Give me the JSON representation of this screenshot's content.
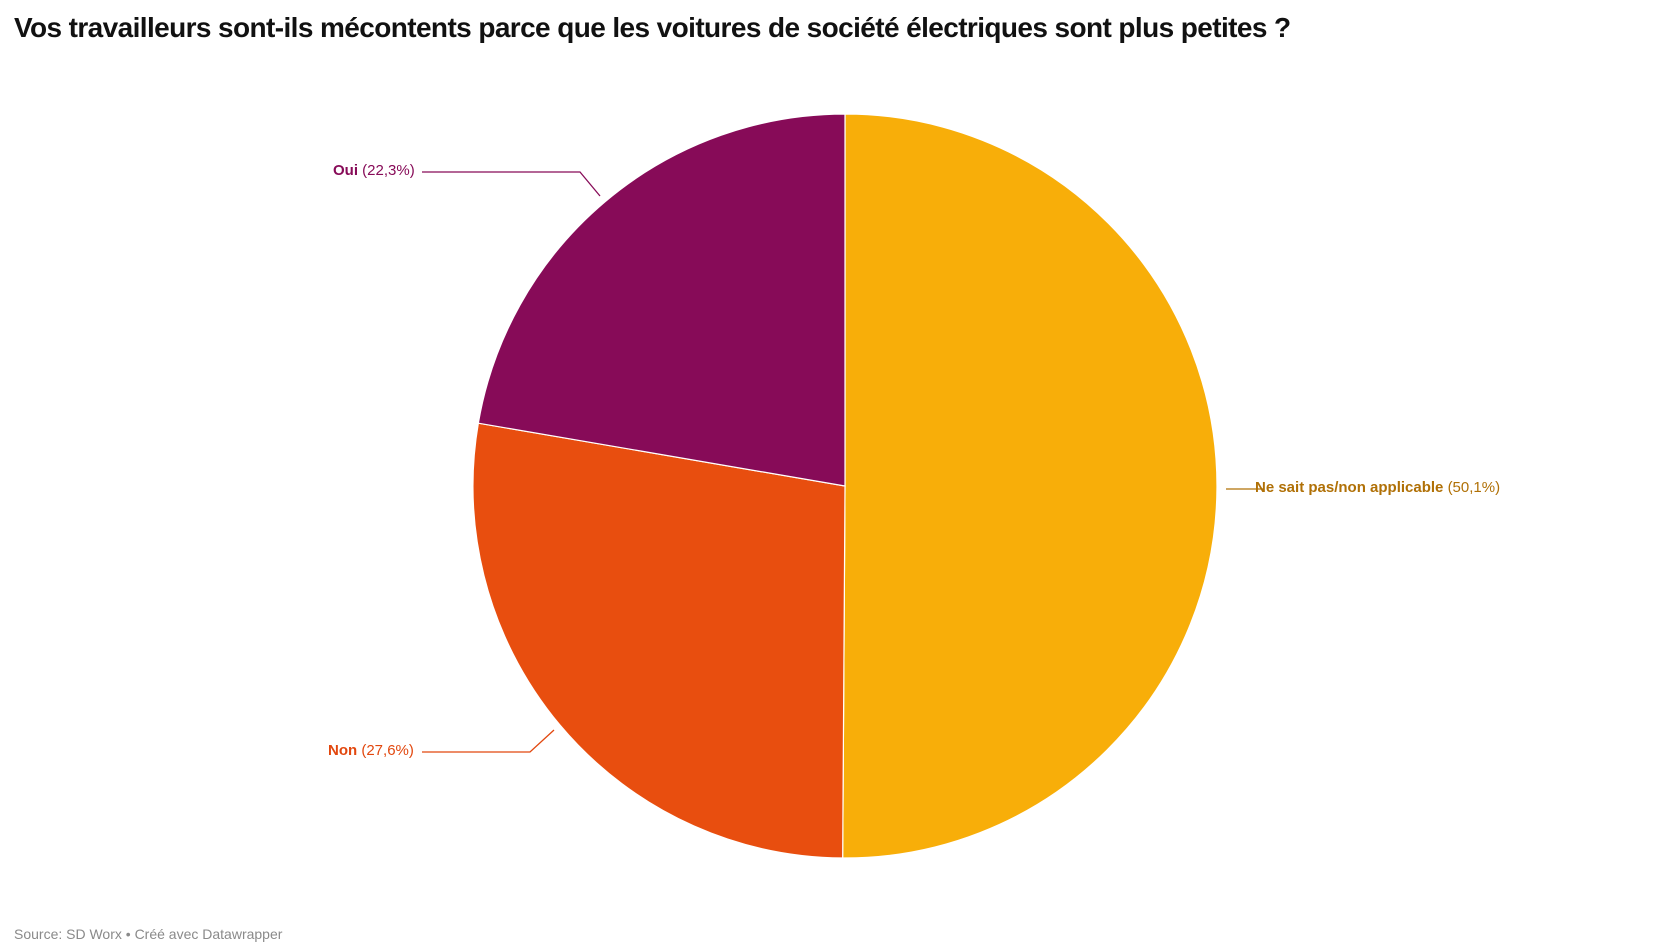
{
  "title": "Vos travailleurs sont-ils mécontents parce que les voitures de société électriques sont plus petites ?",
  "footer": "Source: SD Worx • Créé avec Datawrapper",
  "labels": {
    "oui": {
      "name": "Oui",
      "value": "(22,3%)"
    },
    "non": {
      "name": "Non",
      "value": "(27,6%)"
    },
    "nsp": {
      "name": "Ne sait pas/non applicable",
      "value": "(50,1%)"
    }
  },
  "colors": {
    "oui": "#870b58",
    "non": "#e84e0f",
    "nsp": "#f8ae09",
    "oui_label": "#870b58",
    "non_label": "#e2470e",
    "nsp_label": "#b07006"
  },
  "chart_data": {
    "type": "pie",
    "title": "Vos travailleurs sont-ils mécontents parce que les voitures de société électriques sont plus petites ?",
    "categories": [
      "Ne sait pas/non applicable",
      "Non",
      "Oui"
    ],
    "values": [
      50.1,
      27.6,
      22.3
    ],
    "value_labels": [
      "50,1%",
      "27,6%",
      "22,3%"
    ],
    "colors": [
      "#f8ae09",
      "#e84e0f",
      "#870b58"
    ],
    "start_angle_deg": 0,
    "direction": "clockwise",
    "legend": "none (direct labels with leader lines)",
    "source": "Source: SD Worx • Créé avec Datawrapper"
  }
}
